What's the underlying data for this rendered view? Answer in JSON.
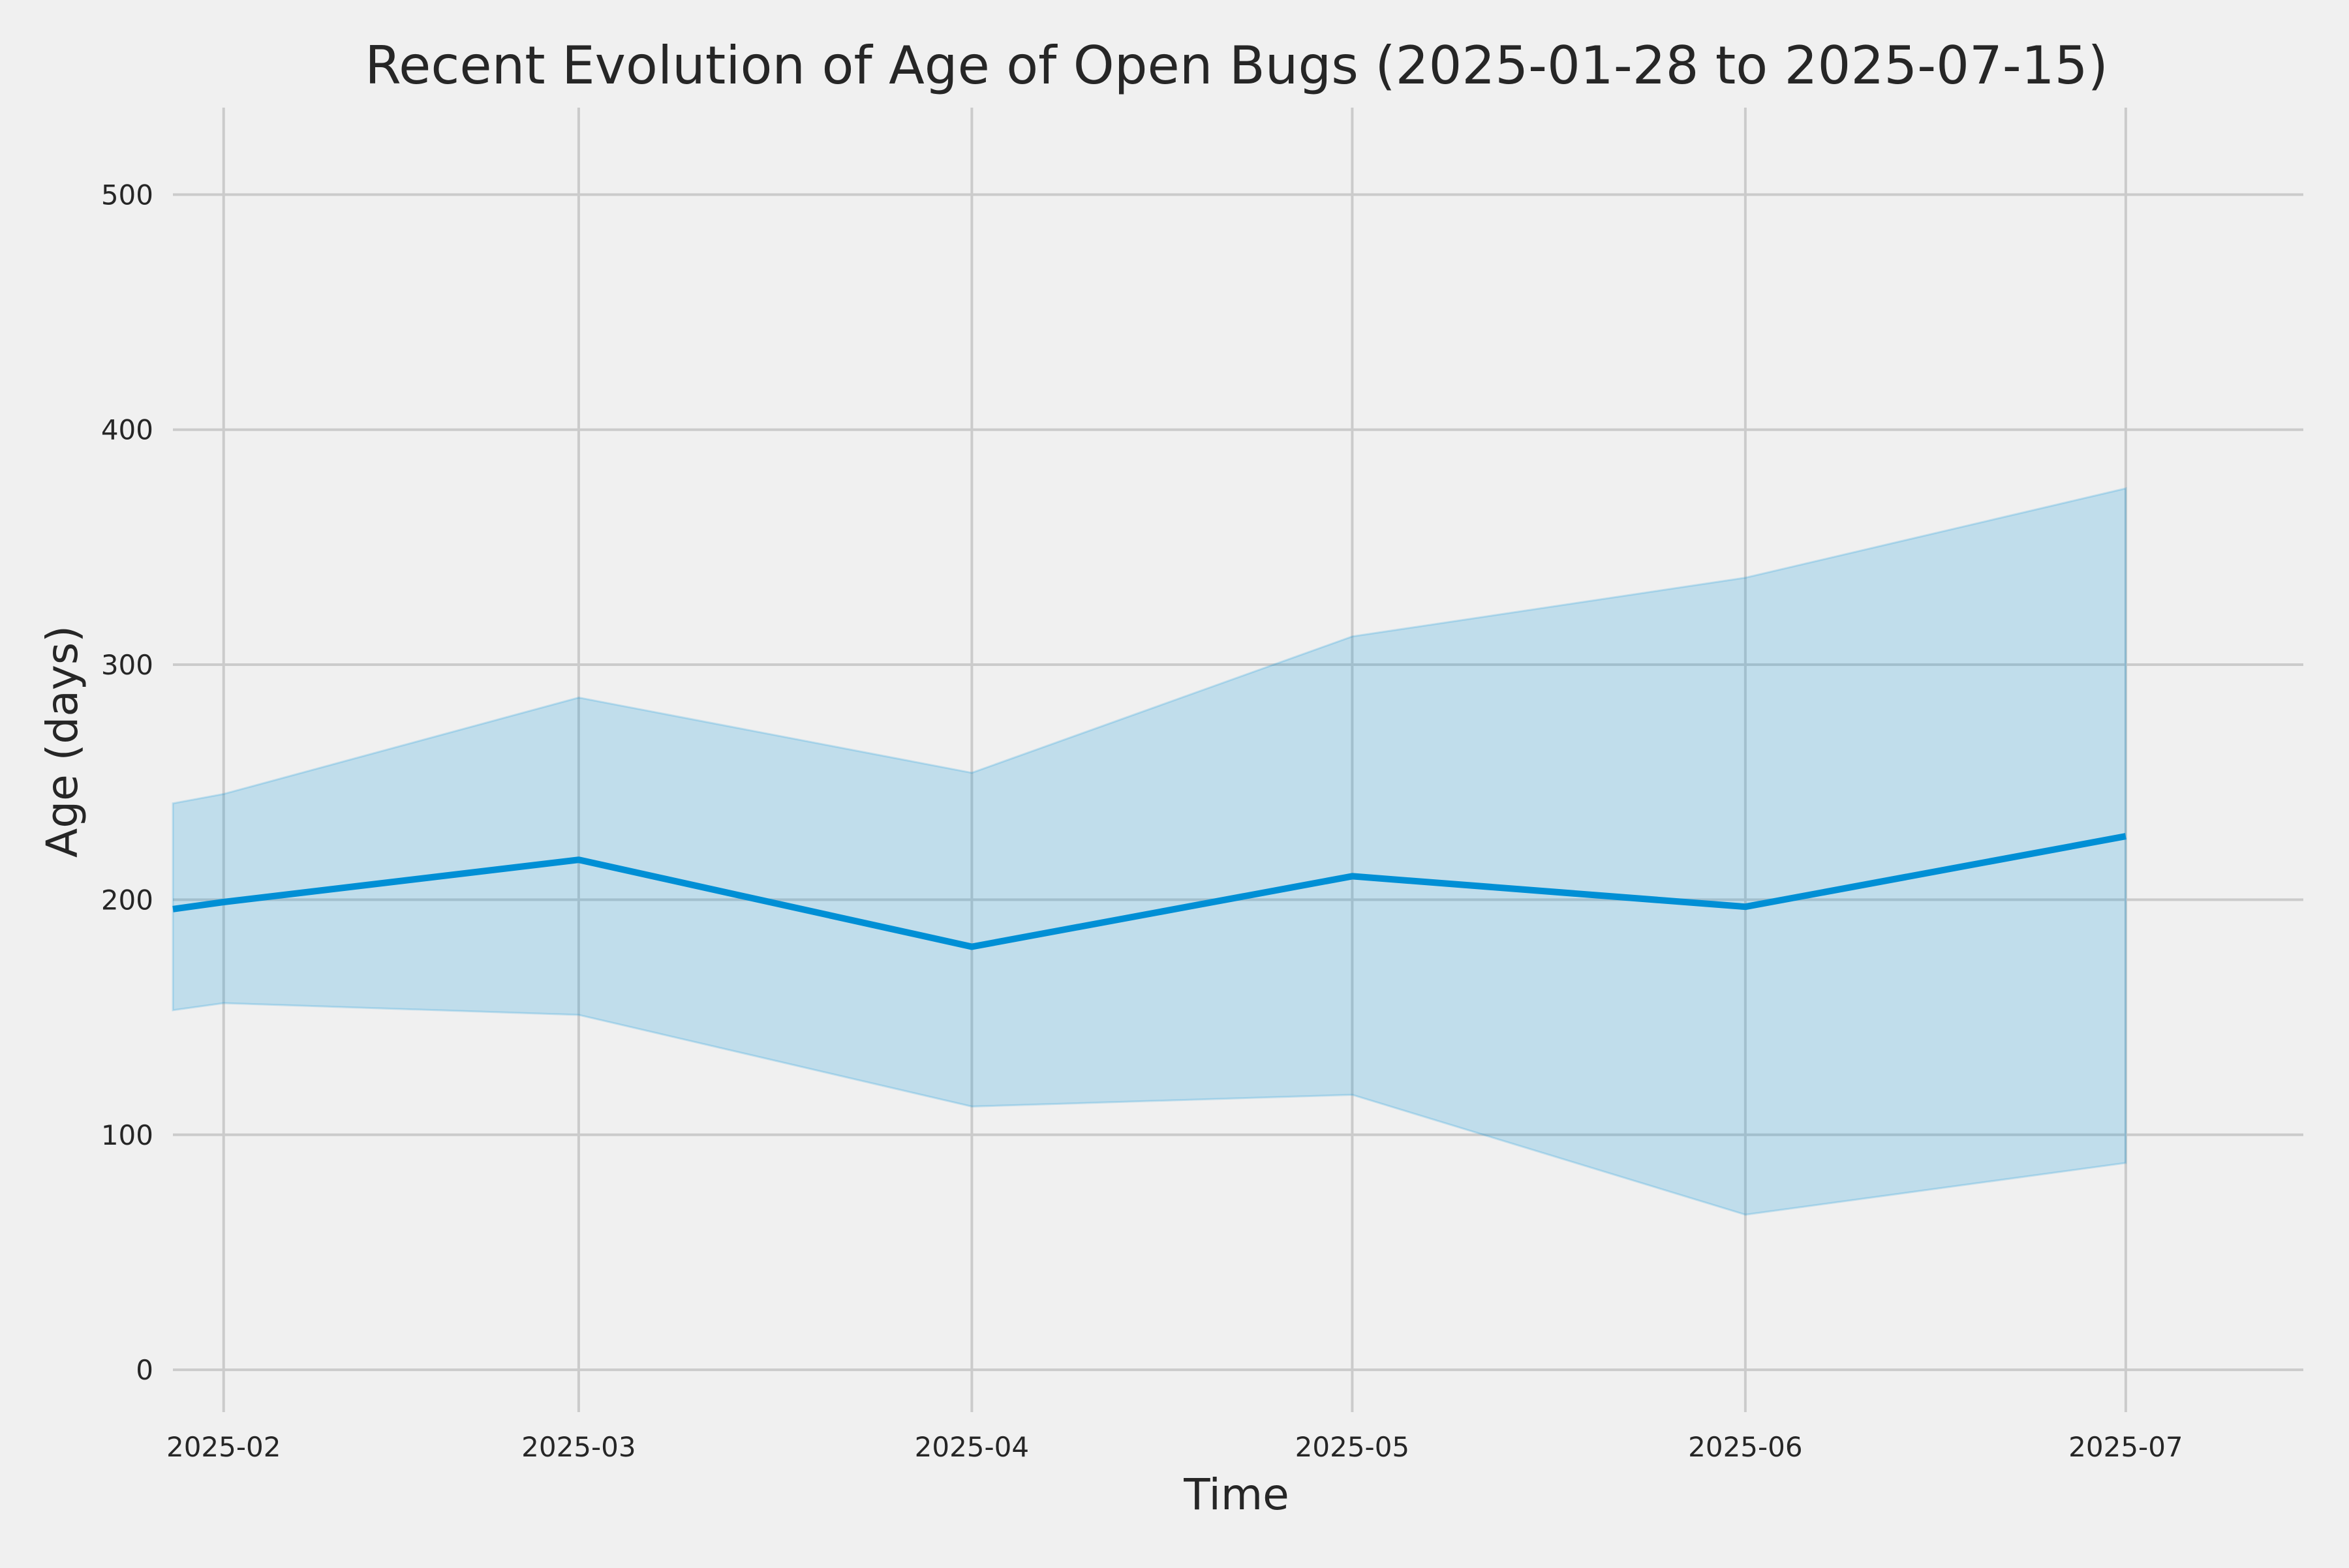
{
  "chart_data": {
    "type": "area",
    "title": "Recent Evolution of Age of Open Bugs (2025-01-28 to 2025-07-15)",
    "xlabel": "Time",
    "ylabel": "Age (days)",
    "x": [
      "2025-01-28",
      "2025-02-01",
      "2025-03-01",
      "2025-04-01",
      "2025-05-01",
      "2025-06-01",
      "2025-07-01"
    ],
    "series": [
      {
        "name": "",
        "values": [
          196,
          199,
          217,
          180,
          210,
          197,
          227
        ],
        "lower": [
          153,
          156,
          151,
          112,
          117,
          66,
          88
        ],
        "upper": [
          241,
          245,
          286,
          254,
          312,
          337,
          375
        ]
      }
    ],
    "xlim": [
      "2025-01-28",
      "2025-07-15"
    ],
    "ylim": [
      -18,
      537
    ],
    "x_ticks": [
      {
        "date": "2025-02-01",
        "label": "2025-02"
      },
      {
        "date": "2025-03-01",
        "label": "2025-03"
      },
      {
        "date": "2025-04-01",
        "label": "2025-04"
      },
      {
        "date": "2025-05-01",
        "label": "2025-05"
      },
      {
        "date": "2025-06-01",
        "label": "2025-06"
      },
      {
        "date": "2025-07-01",
        "label": "2025-07"
      }
    ],
    "y_ticks": [
      0,
      100,
      200,
      300,
      400,
      500
    ],
    "grid": true,
    "colors": {
      "line": "#008fd5",
      "band": "#008fd5",
      "background": "#f0f0f0",
      "grid": "#cbcbcb"
    }
  }
}
